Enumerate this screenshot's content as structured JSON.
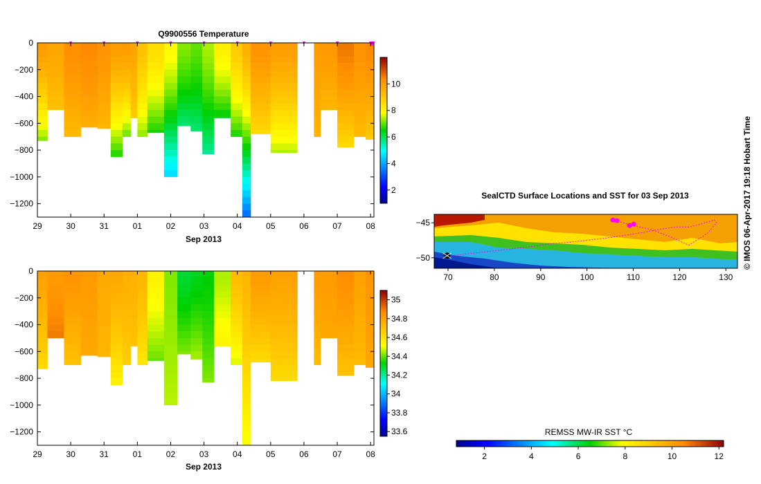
{
  "page": {
    "vertical_credit": "© IMOS 06-Apr-2017 19:18 Hobart Time"
  },
  "chart_data": [
    {
      "type": "heatmap",
      "id": "temperature-profile",
      "title": "Q9900556  Temperature",
      "xlabel": "Sep 2013",
      "ylabel": "",
      "x_tick_labels": [
        "29",
        "30",
        "31",
        "01",
        "02",
        "03",
        "04",
        "05",
        "06",
        "07",
        "08"
      ],
      "x_range_days": [
        0,
        10.1
      ],
      "y_ticks": [
        0,
        -200,
        -400,
        -600,
        -800,
        -1000,
        -1200
      ],
      "ylim": [
        -1300,
        0
      ],
      "surface_markers_day": [
        1,
        2,
        3,
        4,
        5,
        6,
        7,
        8,
        9,
        10,
        10.05
      ],
      "colorbar": {
        "ticks": [
          2,
          4,
          6,
          8,
          10
        ],
        "range": [
          1,
          12
        ]
      },
      "profiles": [
        {
          "t0": 0.0,
          "t1": 0.3,
          "max_depth": 730,
          "surface": 10.0,
          "deep": 7.2
        },
        {
          "t0": 0.3,
          "t1": 0.8,
          "max_depth": 500,
          "surface": 9.8,
          "deep": 9.2
        },
        {
          "t0": 0.8,
          "t1": 1.3,
          "max_depth": 700,
          "surface": 10.3,
          "deep": 9.3
        },
        {
          "t0": 1.3,
          "t1": 1.8,
          "max_depth": 630,
          "surface": 10.4,
          "deep": 9.6
        },
        {
          "t0": 1.8,
          "t1": 2.2,
          "max_depth": 640,
          "surface": 10.2,
          "deep": 9.4
        },
        {
          "t0": 2.2,
          "t1": 2.55,
          "max_depth": 850,
          "surface": 10.0,
          "deep": 6.6
        },
        {
          "t0": 2.55,
          "t1": 2.8,
          "max_depth": 700,
          "surface": 10.1,
          "deep": 7.0
        },
        {
          "t0": 2.8,
          "t1": 3.0,
          "max_depth": 560,
          "surface": 9.8,
          "deep": 9.0
        },
        {
          "t0": 3.0,
          "t1": 3.3,
          "max_depth": 700,
          "surface": 9.2,
          "deep": 7.2
        },
        {
          "t0": 3.3,
          "t1": 3.8,
          "max_depth": 670,
          "surface": 8.6,
          "deep": 6.6
        },
        {
          "t0": 3.8,
          "t1": 4.2,
          "max_depth": 1000,
          "surface": 8.0,
          "deep": 4.5
        },
        {
          "t0": 4.2,
          "t1": 4.6,
          "max_depth": 620,
          "surface": 7.2,
          "deep": 5.8
        },
        {
          "t0": 4.6,
          "t1": 4.95,
          "max_depth": 660,
          "surface": 7.0,
          "deep": 5.8
        },
        {
          "t0": 4.95,
          "t1": 5.3,
          "max_depth": 830,
          "surface": 7.4,
          "deep": 5.6
        },
        {
          "t0": 5.3,
          "t1": 5.8,
          "max_depth": 560,
          "surface": 8.2,
          "deep": 6.4
        },
        {
          "t0": 5.8,
          "t1": 6.15,
          "max_depth": 700,
          "surface": 9.0,
          "deep": 6.6
        },
        {
          "t0": 6.15,
          "t1": 6.4,
          "max_depth": 1300,
          "surface": 9.6,
          "deep": 3.3
        },
        {
          "t0": 6.4,
          "t1": 7.0,
          "max_depth": 680,
          "surface": 10.2,
          "deep": 8.6
        },
        {
          "t0": 7.0,
          "t1": 7.8,
          "max_depth": 820,
          "surface": 10.0,
          "deep": 7.4
        },
        {
          "t0": 8.3,
          "t1": 8.5,
          "max_depth": 700,
          "surface": 10.0,
          "deep": 9.5
        },
        {
          "t0": 8.5,
          "t1": 9.0,
          "max_depth": 500,
          "surface": 10.1,
          "deep": 9.4
        },
        {
          "t0": 9.0,
          "t1": 9.5,
          "max_depth": 780,
          "surface": 10.6,
          "deep": 8.6
        },
        {
          "t0": 9.5,
          "t1": 9.85,
          "max_depth": 700,
          "surface": 10.2,
          "deep": 9.3
        },
        {
          "t0": 9.85,
          "t1": 10.1,
          "max_depth": 720,
          "surface": 10.4,
          "deep": 9.0
        }
      ]
    },
    {
      "type": "heatmap",
      "id": "salinity-profile",
      "title": "",
      "xlabel": "Sep 2013",
      "ylabel": "",
      "x_tick_labels": [
        "29",
        "30",
        "31",
        "01",
        "02",
        "03",
        "04",
        "05",
        "06",
        "07",
        "08"
      ],
      "x_range_days": [
        0,
        10.1
      ],
      "y_ticks": [
        0,
        -200,
        -400,
        -600,
        -800,
        -1000,
        -1200
      ],
      "ylim": [
        -1300,
        0
      ],
      "colorbar": {
        "ticks": [
          33.6,
          33.8,
          34,
          34.2,
          34.4,
          34.6,
          34.8,
          35
        ],
        "range": [
          33.55,
          35.1
        ]
      },
      "profiles": [
        {
          "t0": 0.0,
          "t1": 0.3,
          "max_depth": 730,
          "surface": 34.8,
          "deep": 34.62
        },
        {
          "t0": 0.3,
          "t1": 0.8,
          "max_depth": 500,
          "surface": 34.82,
          "deep": 34.9
        },
        {
          "t0": 0.8,
          "t1": 1.3,
          "max_depth": 700,
          "surface": 34.84,
          "deep": 34.7
        },
        {
          "t0": 1.3,
          "t1": 1.8,
          "max_depth": 630,
          "surface": 34.82,
          "deep": 34.78
        },
        {
          "t0": 1.8,
          "t1": 2.2,
          "max_depth": 640,
          "surface": 34.78,
          "deep": 34.74
        },
        {
          "t0": 2.2,
          "t1": 2.55,
          "max_depth": 850,
          "surface": 34.78,
          "deep": 34.55
        },
        {
          "t0": 2.55,
          "t1": 2.8,
          "max_depth": 700,
          "surface": 34.76,
          "deep": 34.66
        },
        {
          "t0": 2.8,
          "t1": 3.0,
          "max_depth": 560,
          "surface": 34.75,
          "deep": 34.7
        },
        {
          "t0": 3.0,
          "t1": 3.3,
          "max_depth": 700,
          "surface": 34.74,
          "deep": 34.58
        },
        {
          "t0": 3.3,
          "t1": 3.8,
          "max_depth": 670,
          "surface": 34.55,
          "deep": 34.4
        },
        {
          "t0": 3.8,
          "t1": 4.2,
          "max_depth": 1000,
          "surface": 34.42,
          "deep": 34.46
        },
        {
          "t0": 4.2,
          "t1": 4.6,
          "max_depth": 620,
          "surface": 34.28,
          "deep": 34.42
        },
        {
          "t0": 4.6,
          "t1": 4.95,
          "max_depth": 660,
          "surface": 34.3,
          "deep": 34.45
        },
        {
          "t0": 4.95,
          "t1": 5.3,
          "max_depth": 830,
          "surface": 34.32,
          "deep": 34.42
        },
        {
          "t0": 5.3,
          "t1": 5.8,
          "max_depth": 560,
          "surface": 34.45,
          "deep": 34.55
        },
        {
          "t0": 5.8,
          "t1": 6.15,
          "max_depth": 700,
          "surface": 34.72,
          "deep": 34.48
        },
        {
          "t0": 6.15,
          "t1": 6.4,
          "max_depth": 1300,
          "surface": 34.74,
          "deep": 34.5
        },
        {
          "t0": 6.4,
          "t1": 7.0,
          "max_depth": 680,
          "surface": 34.82,
          "deep": 34.62
        },
        {
          "t0": 7.0,
          "t1": 7.8,
          "max_depth": 820,
          "surface": 34.8,
          "deep": 34.62
        },
        {
          "t0": 8.3,
          "t1": 8.5,
          "max_depth": 700,
          "surface": 34.82,
          "deep": 34.72
        },
        {
          "t0": 8.5,
          "t1": 9.0,
          "max_depth": 500,
          "surface": 34.82,
          "deep": 34.78
        },
        {
          "t0": 9.0,
          "t1": 9.5,
          "max_depth": 780,
          "surface": 34.86,
          "deep": 34.7
        },
        {
          "t0": 9.5,
          "t1": 9.85,
          "max_depth": 700,
          "surface": 34.8,
          "deep": 34.72
        },
        {
          "t0": 9.85,
          "t1": 10.1,
          "max_depth": 720,
          "surface": 34.84,
          "deep": 34.78
        }
      ]
    },
    {
      "type": "heatmap",
      "id": "surface-map",
      "title": "SealCTD Surface Locations and SST for 03 Sep 2013",
      "xlabel": "",
      "ylabel": "",
      "x_tick_labels": [
        "70",
        "80",
        "90",
        "100",
        "110",
        "120",
        "130"
      ],
      "x_ticks": [
        70,
        80,
        90,
        100,
        110,
        120,
        130
      ],
      "xlim": [
        67,
        132.5
      ],
      "y_tick_labels": [
        "-45",
        "-50"
      ],
      "y_ticks": [
        -45,
        -50
      ],
      "ylim": [
        -51.5,
        -43.8
      ],
      "track_lon": [
        69.5,
        72,
        76,
        80,
        84,
        88,
        92,
        96,
        100,
        104,
        108,
        112,
        116,
        119.5,
        122,
        124,
        126,
        127.5,
        128,
        126,
        122,
        118,
        114,
        110,
        106
      ],
      "track_lat": [
        -49.8,
        -49.6,
        -49.3,
        -49.0,
        -48.7,
        -48.4,
        -48.0,
        -47.8,
        -47.5,
        -47.2,
        -46.8,
        -46.4,
        -45.9,
        -45.6,
        -45.6,
        -45.3,
        -44.9,
        -44.6,
        -45.0,
        -46.5,
        -48.2,
        -47.0,
        -46.0,
        -45.4,
        -44.7
      ],
      "hotspots_lon": [
        105.6,
        106.5,
        109.2,
        110.1
      ],
      "hotspots_lat": [
        -44.6,
        -44.7,
        -45.4,
        -45.2
      ],
      "start_marker": {
        "lon": 69.8,
        "lat": -49.7
      }
    }
  ],
  "sst_colorbar": {
    "label": "REMSS MW-IR SST °C",
    "ticks": [
      2,
      4,
      6,
      8,
      10,
      12
    ],
    "range": [
      0.8,
      12.2
    ]
  }
}
